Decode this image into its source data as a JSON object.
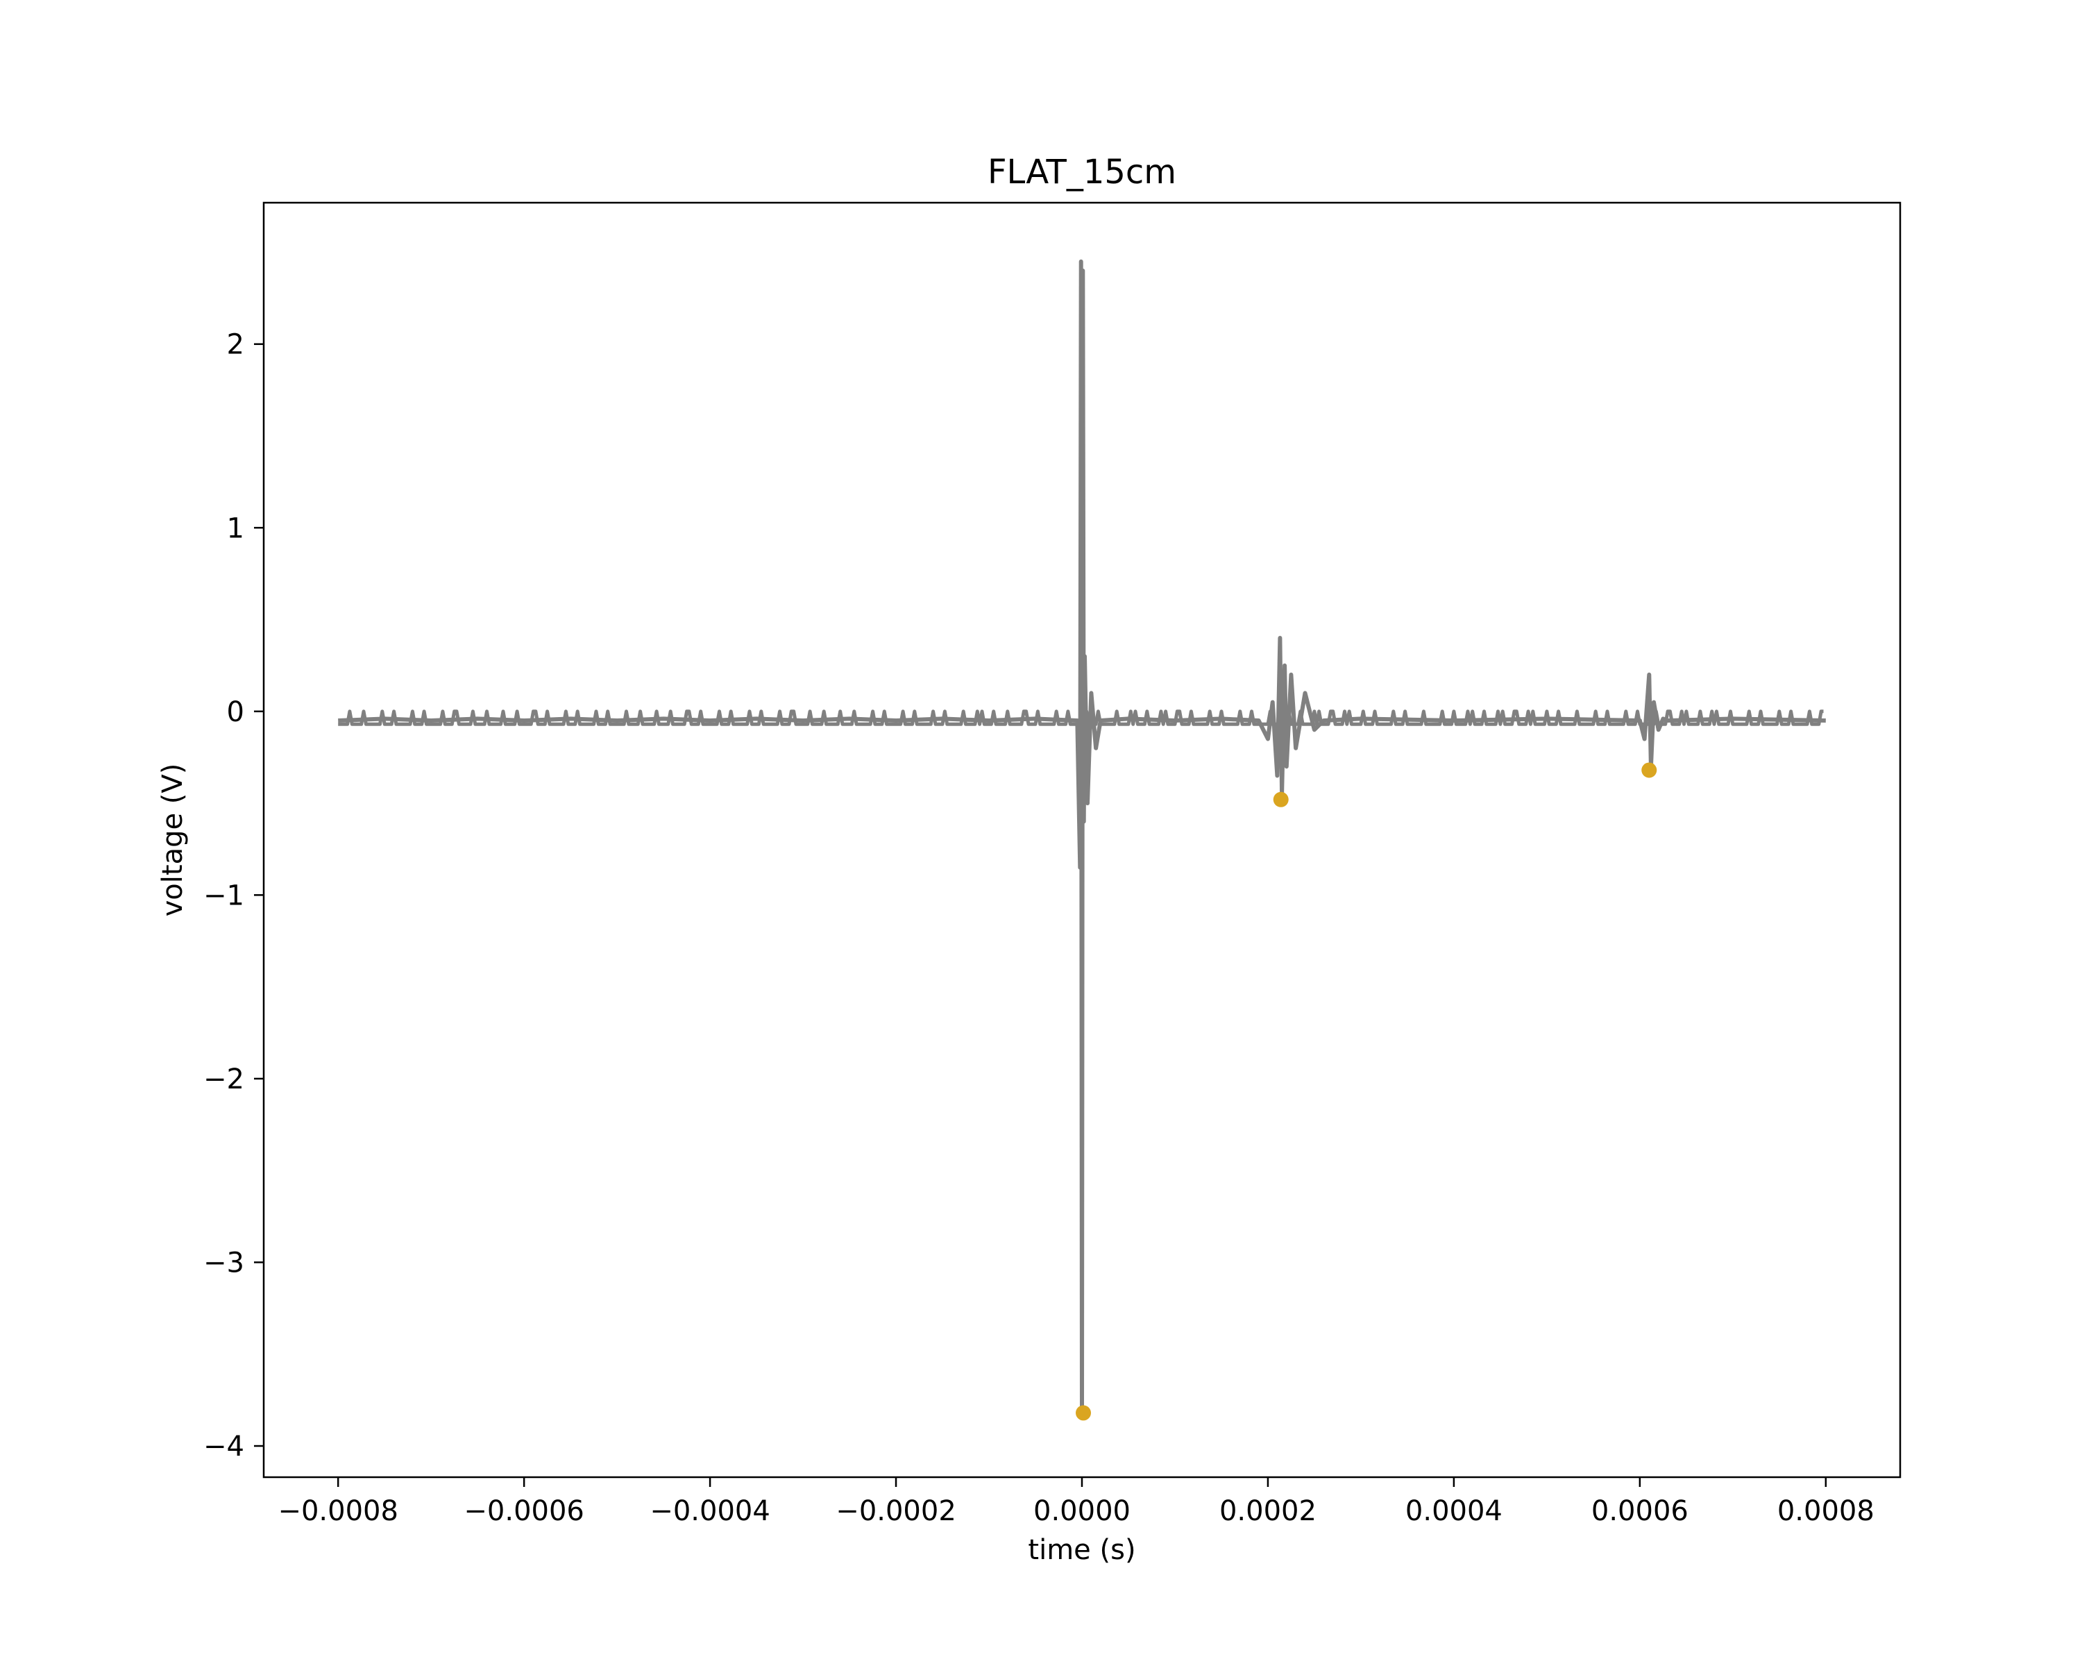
{
  "chart_data": {
    "type": "line",
    "title": "FLAT_15cm",
    "xlabel": "time (s)",
    "ylabel": "voltage (V)",
    "xlim": [
      -0.00088,
      0.00088
    ],
    "ylim": [
      -4.17,
      2.77
    ],
    "x_ticks": [
      -0.0008,
      -0.0006,
      -0.0004,
      -0.0002,
      0.0,
      0.0002,
      0.0004,
      0.0006,
      0.0008
    ],
    "x_tick_labels": [
      "−0.0008",
      "−0.0006",
      "−0.0004",
      "−0.0002",
      "0.0000",
      "0.0002",
      "0.0004",
      "0.0006",
      "0.0008"
    ],
    "y_ticks": [
      -4,
      -3,
      -2,
      -1,
      0,
      1,
      2
    ],
    "y_tick_labels": [
      "−4",
      "−3",
      "−2",
      "−1",
      "0",
      "1",
      "2"
    ],
    "grid": false,
    "series": [
      {
        "color": "#808080",
        "x": [
          -0.0008,
          -0.00075,
          -0.0007,
          -0.00065,
          -0.0006,
          -0.00055,
          -0.0005,
          -0.00045,
          -0.0004,
          -0.00035,
          -0.0003,
          -0.00025,
          -0.0002,
          -0.00015,
          -0.0001,
          -5e-05,
          -5e-06,
          -2e-06,
          -1e-06,
          0.0,
          1e-06,
          2e-06,
          3e-06,
          6e-06,
          1e-05,
          1.5e-05,
          2e-05,
          5e-05,
          0.0001,
          0.00015,
          0.00019,
          0.0002,
          0.000205,
          0.00021,
          0.000213,
          0.000215,
          0.000218,
          0.00022,
          0.000225,
          0.00023,
          0.00024,
          0.00025,
          0.00026,
          0.0003,
          0.0004,
          0.0005,
          0.0006,
          0.000605,
          0.00061,
          0.000612,
          0.000615,
          0.00062,
          0.000625,
          0.00063,
          0.0007,
          0.0008
        ],
        "y": [
          -0.05,
          -0.04,
          -0.05,
          -0.04,
          -0.05,
          -0.04,
          -0.05,
          -0.04,
          -0.05,
          -0.04,
          -0.05,
          -0.04,
          -0.05,
          -0.04,
          -0.05,
          -0.04,
          -0.05,
          -0.85,
          2.45,
          -3.8,
          2.4,
          -0.6,
          0.3,
          -0.5,
          0.1,
          -0.2,
          -0.05,
          -0.04,
          -0.05,
          -0.04,
          -0.05,
          -0.15,
          0.05,
          -0.35,
          0.4,
          -0.45,
          0.25,
          -0.3,
          0.2,
          -0.2,
          0.1,
          -0.1,
          -0.05,
          -0.04,
          -0.05,
          -0.04,
          -0.05,
          -0.15,
          0.2,
          -0.3,
          0.05,
          -0.1,
          -0.04,
          -0.05,
          -0.04,
          -0.05
        ]
      }
    ],
    "markers": {
      "color": "#DAA520",
      "x": [
        1.5e-06,
        0.000214,
        0.00061
      ],
      "y": [
        -3.82,
        -0.48,
        -0.32
      ]
    }
  }
}
